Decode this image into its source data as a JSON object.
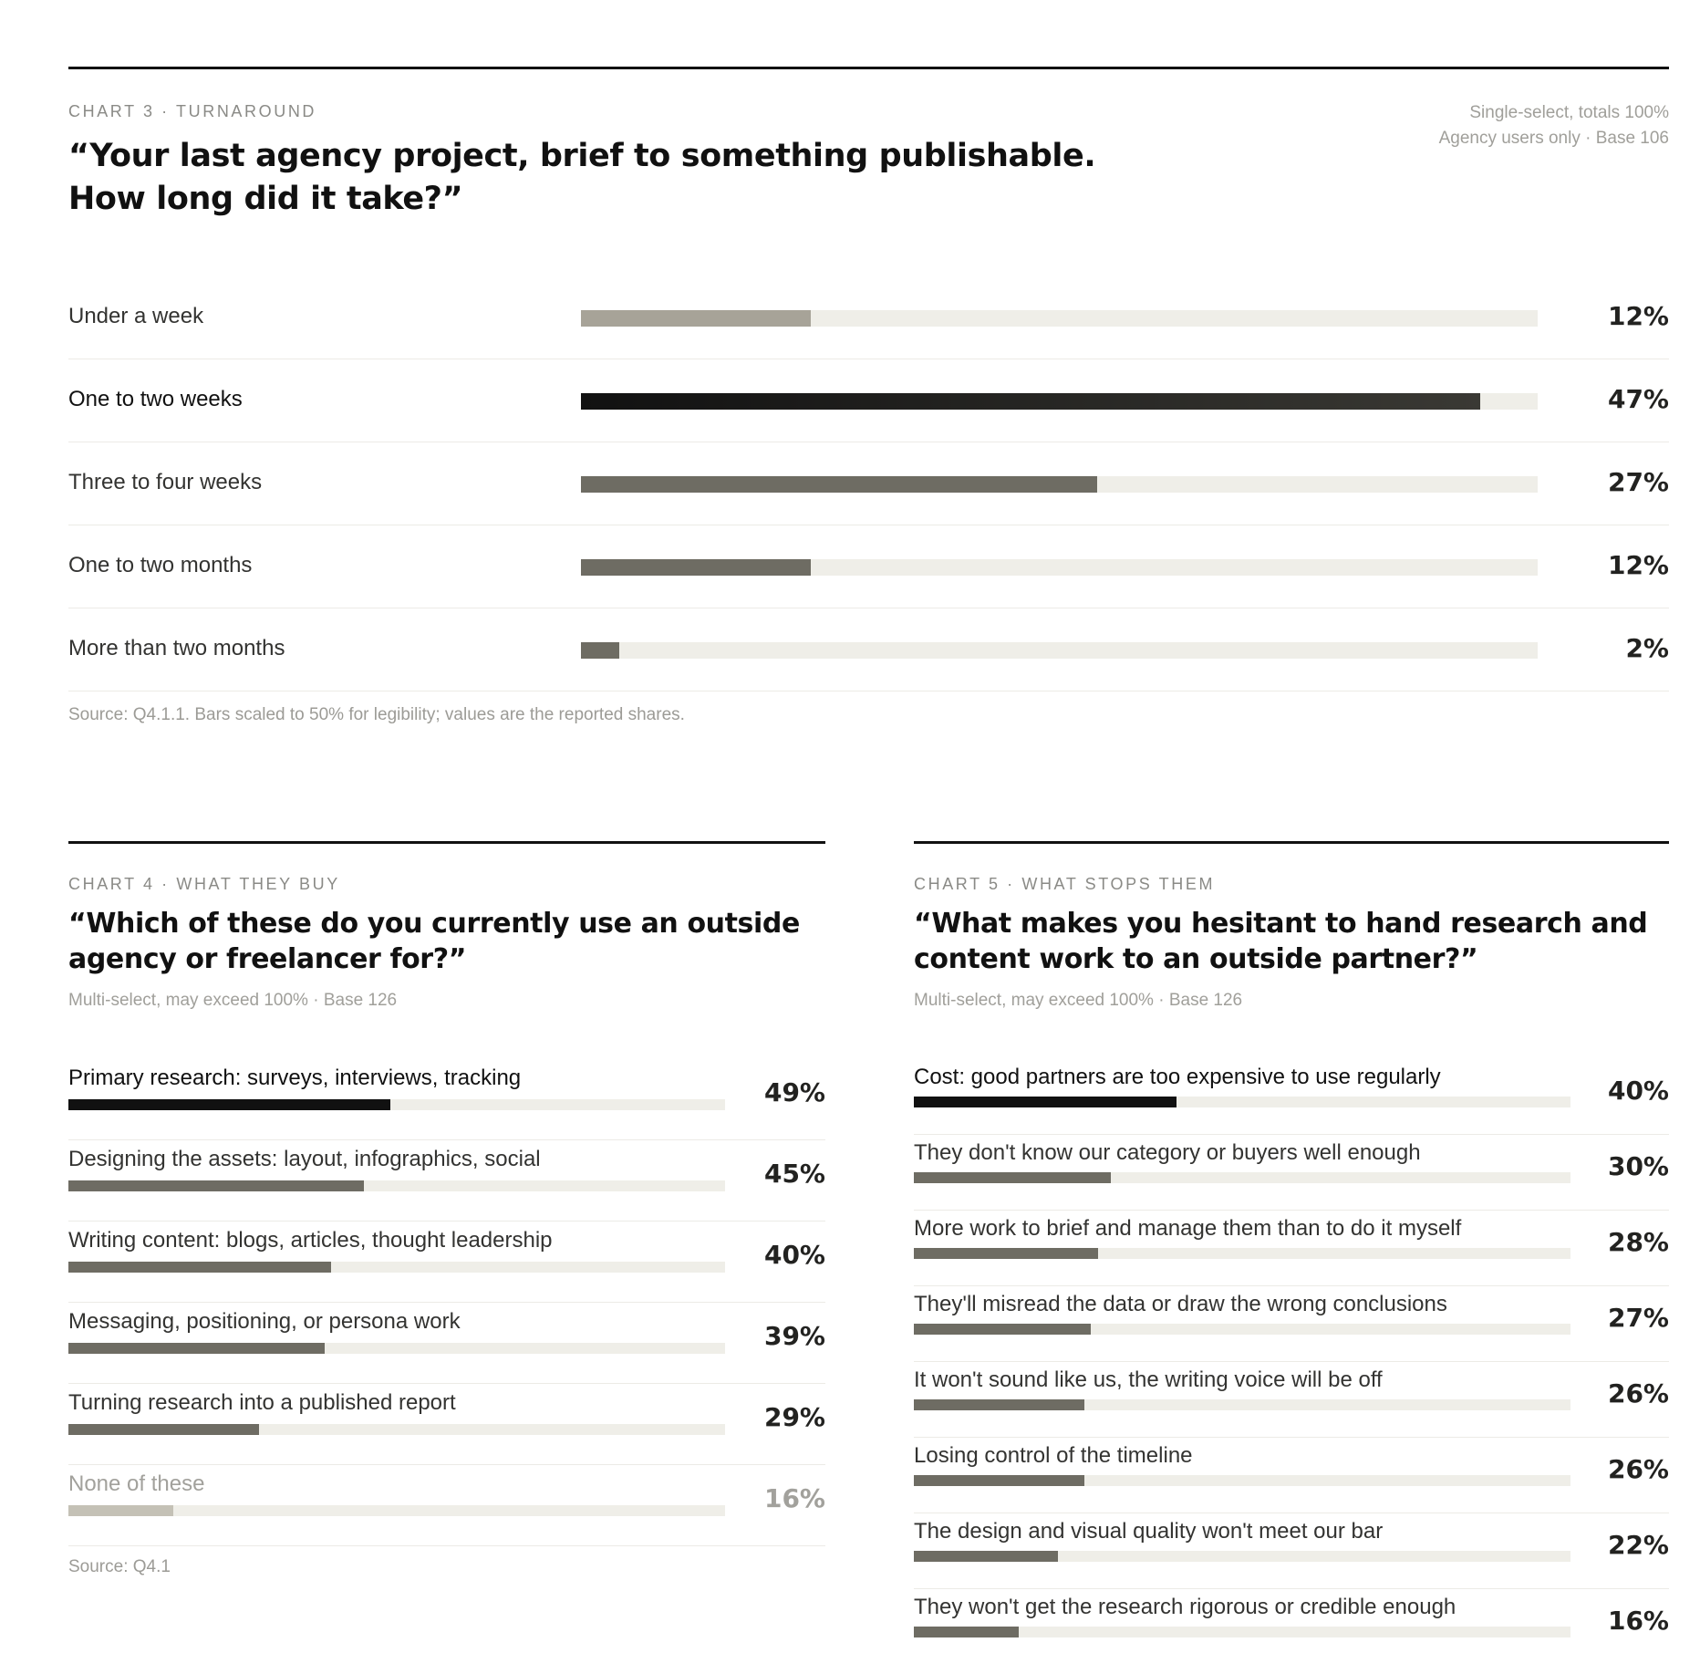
{
  "chart_data": [
    {
      "type": "bar",
      "kicker": "CHART 3 · TURNAROUND",
      "title": "“Your last agency project, brief to something publishable. How long did it take?”",
      "meta_lines": [
        "Single-select, totals 100%",
        "Agency users only · Base 106"
      ],
      "categories": [
        "Under a week",
        "One to two weeks",
        "Three to four weeks",
        "One to two months",
        "More than two months"
      ],
      "values": [
        12,
        47,
        27,
        12,
        2
      ],
      "value_labels": [
        "12%",
        "47%",
        "27%",
        "12%",
        "2%"
      ],
      "xlim": [
        0,
        50
      ],
      "highlight_index": 1,
      "source": "Source: Q4.1.1. Bars scaled to 50% for legibility; values are the reported shares.",
      "colors": {
        "first": "#a7a398",
        "highlight": "#111111",
        "default": "#6e6c63",
        "track": "#efeee8"
      }
    },
    {
      "type": "bar",
      "kicker": "CHART 4 · WHAT THEY BUY",
      "title": "“Which of these do you currently use an outside agency or freelancer for?”",
      "meta_lines": [
        "Multi-select, may exceed 100% · Base 126"
      ],
      "categories": [
        "Primary research: surveys, interviews, tracking",
        "Designing the assets: layout, infographics, social",
        "Writing content: blogs, articles, thought leadership",
        "Messaging, positioning, or persona work",
        "Turning research into a published report",
        "None of these"
      ],
      "values": [
        49,
        45,
        40,
        39,
        29,
        16
      ],
      "value_labels": [
        "49%",
        "45%",
        "40%",
        "39%",
        "29%",
        "16%"
      ],
      "xlim": [
        0,
        100
      ],
      "highlight_index": 0,
      "muted_index": 5,
      "source": "Source: Q4.1",
      "colors": {
        "highlight": "#111111",
        "default": "#6e6c63",
        "muted": "#c4c1b6",
        "track": "#efeee8"
      }
    },
    {
      "type": "bar",
      "kicker": "CHART 5 · WHAT STOPS THEM",
      "title": "“What makes you hesitant to hand research and content work to an outside partner?”",
      "meta_lines": [
        "Multi-select, may exceed 100% · Base 126"
      ],
      "categories": [
        "Cost: good partners are too expensive to use regularly",
        "They don't know our category or buyers well enough",
        "More work to brief and manage them than to do it myself",
        "They'll misread the data or draw the wrong conclusions",
        "It won't sound like us, the writing voice will be off",
        "Losing control of the timeline",
        "The design and visual quality won't meet our bar",
        "They won't get the research rigorous or credible enough"
      ],
      "values": [
        40,
        30,
        28,
        27,
        26,
        26,
        22,
        16
      ],
      "value_labels": [
        "40%",
        "30%",
        "28%",
        "27%",
        "26%",
        "26%",
        "22%",
        "16%"
      ],
      "xlim": [
        0,
        100
      ],
      "highlight_index": 0,
      "colors": {
        "highlight": "#111111",
        "default": "#6e6c63",
        "track": "#efeee8"
      }
    }
  ]
}
